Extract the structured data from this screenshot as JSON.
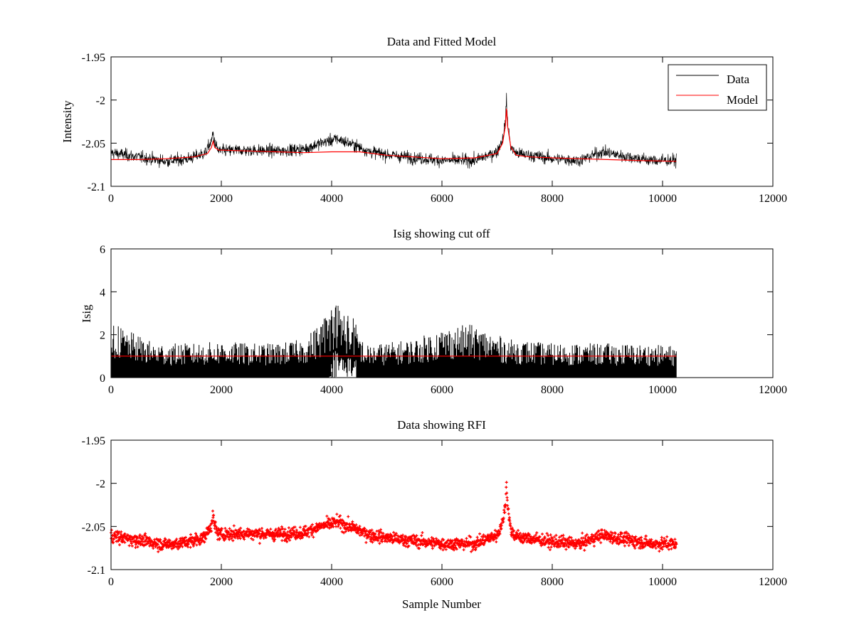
{
  "chart_data": [
    {
      "type": "line",
      "title": "Data and Fitted Model",
      "xlabel": "",
      "ylabel": "Intensity",
      "xlim": [
        0,
        12000
      ],
      "ylim": [
        -2.1,
        -1.95
      ],
      "xticks": [
        "0",
        "2000",
        "4000",
        "6000",
        "8000",
        "10000",
        "12000"
      ],
      "yticks": [
        "-2.1",
        "-2.05",
        "-2",
        "-1.95"
      ],
      "legend": {
        "position": "top-right",
        "entries": [
          "Data",
          "Model"
        ]
      },
      "series": [
        {
          "name": "Data",
          "color": "#000000",
          "noise": 0.009,
          "x": [
            0,
            300,
            600,
            1000,
            1400,
            1700,
            1820,
            1850,
            1880,
            1950,
            2400,
            3000,
            3500,
            3800,
            4100,
            4400,
            4700,
            5200,
            6000,
            6600,
            7000,
            7100,
            7150,
            7170,
            7190,
            7250,
            7350,
            7600,
            8000,
            8500,
            8900,
            9300,
            9800,
            10250
          ],
          "y": [
            -2.061,
            -2.064,
            -2.067,
            -2.071,
            -2.068,
            -2.062,
            -2.048,
            -2.038,
            -2.05,
            -2.059,
            -2.058,
            -2.059,
            -2.057,
            -2.05,
            -2.045,
            -2.052,
            -2.06,
            -2.065,
            -2.07,
            -2.07,
            -2.06,
            -2.045,
            -2.025,
            -2.0,
            -2.025,
            -2.055,
            -2.062,
            -2.064,
            -2.068,
            -2.07,
            -2.06,
            -2.065,
            -2.07,
            -2.07
          ]
        },
        {
          "name": "Model",
          "color": "#ff0000",
          "noise": 0,
          "x": [
            0,
            500,
            1000,
            1500,
            1750,
            1820,
            1850,
            1880,
            1950,
            2500,
            3000,
            3500,
            4000,
            4500,
            5000,
            6000,
            6600,
            7000,
            7100,
            7150,
            7170,
            7190,
            7250,
            7350,
            7600,
            8000,
            8500,
            9000,
            9500,
            10250
          ],
          "y": [
            -2.069,
            -2.069,
            -2.068,
            -2.066,
            -2.062,
            -2.055,
            -2.048,
            -2.055,
            -2.058,
            -2.059,
            -2.06,
            -2.061,
            -2.06,
            -2.06,
            -2.064,
            -2.068,
            -2.067,
            -2.062,
            -2.05,
            -2.03,
            -2.01,
            -2.03,
            -2.055,
            -2.064,
            -2.066,
            -2.067,
            -2.068,
            -2.069,
            -2.07,
            -2.071
          ]
        }
      ]
    },
    {
      "type": "line",
      "title": "Isig showing cut off",
      "xlabel": "",
      "ylabel": "Isig",
      "xlim": [
        0,
        12000
      ],
      "ylim": [
        0,
        6
      ],
      "xticks": [
        "0",
        "2000",
        "4000",
        "6000",
        "8000",
        "10000",
        "12000"
      ],
      "yticks": [
        "0",
        "2",
        "4",
        "6"
      ],
      "series": [
        {
          "color": "#000000",
          "x": [
            0,
            300,
            800,
            1500,
            2000,
            2500,
            3000,
            3500,
            3800,
            4050,
            4200,
            4400,
            4600,
            5500,
            6000,
            6500,
            6800,
            7200,
            8000,
            9000,
            10250
          ],
          "y": [
            2.6,
            2.2,
            1.6,
            1.6,
            1.7,
            1.6,
            1.6,
            1.8,
            2.6,
            3.8,
            3.2,
            2.8,
            1.5,
            1.8,
            2.3,
            2.5,
            2.2,
            1.8,
            1.6,
            1.6,
            1.5
          ]
        },
        {
          "color": "#ff0000",
          "x": [
            0,
            10250
          ],
          "y": [
            1.0,
            1.0
          ]
        }
      ]
    },
    {
      "type": "scatter",
      "title": "Data showing RFI",
      "xlabel": "Sample Number",
      "ylabel": "",
      "xlim": [
        0,
        12000
      ],
      "ylim": [
        -2.1,
        -1.95
      ],
      "xticks": [
        "0",
        "2000",
        "4000",
        "6000",
        "8000",
        "10000",
        "12000"
      ],
      "yticks": [
        "-2.1",
        "-2.05",
        "-2",
        "-1.95"
      ],
      "series": [
        {
          "color": "#ff0000",
          "noise": 0.009,
          "x": [
            0,
            300,
            600,
            1000,
            1400,
            1700,
            1820,
            1850,
            1880,
            1950,
            2400,
            3000,
            3500,
            3800,
            4100,
            4400,
            4700,
            5200,
            6000,
            6600,
            7000,
            7100,
            7150,
            7170,
            7190,
            7250,
            7350,
            7600,
            8000,
            8500,
            8900,
            9300,
            9800,
            10250
          ],
          "y": [
            -2.061,
            -2.064,
            -2.067,
            -2.071,
            -2.068,
            -2.062,
            -2.048,
            -2.038,
            -2.05,
            -2.059,
            -2.058,
            -2.059,
            -2.057,
            -2.05,
            -2.045,
            -2.052,
            -2.06,
            -2.065,
            -2.07,
            -2.07,
            -2.06,
            -2.045,
            -2.025,
            -2.0,
            -2.025,
            -2.055,
            -2.062,
            -2.064,
            -2.068,
            -2.07,
            -2.06,
            -2.065,
            -2.07,
            -2.07
          ]
        }
      ]
    }
  ]
}
